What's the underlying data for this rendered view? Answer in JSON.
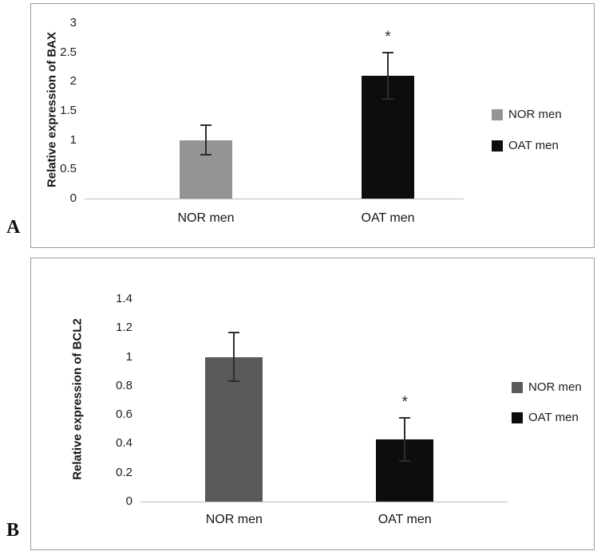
{
  "figure": {
    "background": "#ffffff",
    "panel_border_color": "#9a9a9a"
  },
  "chart_data": [
    {
      "type": "bar",
      "panel_label": "A",
      "title": "",
      "xlabel": "",
      "ylabel": "Relative expression of BAX",
      "categories": [
        "NOR men",
        "OAT men"
      ],
      "values": [
        1.0,
        2.1
      ],
      "error_bars": [
        0.25,
        0.4
      ],
      "significance": [
        "",
        "*"
      ],
      "bar_colors": [
        "#949494",
        "#0d0d0d"
      ],
      "ylim": [
        0,
        3
      ],
      "yticks": [
        0,
        0.5,
        1,
        1.5,
        2,
        2.5,
        3
      ],
      "ytick_labels": [
        "0",
        "0.5",
        "1",
        "1.5",
        "2",
        "2.5",
        "3"
      ],
      "grid": false,
      "legend_position": "right",
      "legend": [
        {
          "label": "NOR men",
          "color": "#949494"
        },
        {
          "label": "OAT men",
          "color": "#0d0d0d"
        }
      ]
    },
    {
      "type": "bar",
      "panel_label": "B",
      "title": "",
      "xlabel": "",
      "ylabel": "Relative  expression of BCL2",
      "categories": [
        "NOR men",
        "OAT men"
      ],
      "values": [
        1.0,
        0.43
      ],
      "error_bars": [
        0.17,
        0.15
      ],
      "significance": [
        "",
        "*"
      ],
      "bar_colors": [
        "#5a5a5a",
        "#0d0d0d"
      ],
      "ylim": [
        0,
        1.4
      ],
      "yticks": [
        0,
        0.2,
        0.4,
        0.6,
        0.8,
        1.0,
        1.2,
        1.4
      ],
      "ytick_labels": [
        "0",
        "0.2",
        "0.4",
        "0.6",
        "0.8",
        "1",
        "1.2",
        "1.4"
      ],
      "grid": false,
      "legend_position": "right",
      "legend": [
        {
          "label": "NOR men",
          "color": "#5a5a5a"
        },
        {
          "label": "OAT men",
          "color": "#0d0d0d"
        }
      ]
    }
  ]
}
